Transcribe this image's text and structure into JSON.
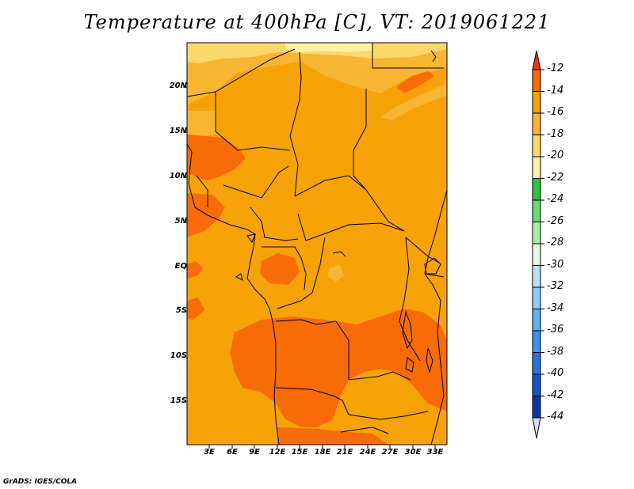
{
  "title": "Temperature at 400hPa [C], VT: 2019061221",
  "footer": "GrADS: IGES/COLA",
  "map": {
    "variable": "Temperature at 400hPa",
    "units": "C",
    "valid_time": "2019061221",
    "region": "Central and Southern Africa",
    "lon_range": [
      0,
      34
    ],
    "lat_range": [
      -20,
      24
    ],
    "lat_ticks": [
      "20N",
      "15N",
      "10N",
      "5N",
      "EQ",
      "5S",
      "10S",
      "15S"
    ],
    "lon_ticks": [
      "3E",
      "6E",
      "9E",
      "12E",
      "15E",
      "18E",
      "21E",
      "24E",
      "27E",
      "30E",
      "33E"
    ],
    "fill_colors": {
      "warm_minus_12_to_14": "#f76b08",
      "minus_14_to_16": "#f7a208",
      "minus_16_to_18": "#f7b533",
      "minus_18_to_20": "#fcd86b",
      "minus_20_to_22": "#fcf0a6"
    }
  },
  "colorbar": {
    "labels": [
      "-12",
      "-14",
      "-16",
      "-18",
      "-20",
      "-22",
      "-24",
      "-26",
      "-28",
      "-30",
      "-32",
      "-34",
      "-36",
      "-38",
      "-40",
      "-42",
      "-44"
    ],
    "colors": [
      "#f76b08",
      "#f7a208",
      "#f7b533",
      "#fcd86b",
      "#fcf0a6",
      "#2fc13c",
      "#6ad96e",
      "#a6eea6",
      "#e3fbe0",
      "#b8e1fb",
      "#8ccaf7",
      "#5fb0f0",
      "#3d92e8",
      "#2a72d7",
      "#1955c2",
      "#0b36a3"
    ],
    "top_arrow_color": "#f73008",
    "bottom_arrow_color": "#d8daf7"
  }
}
